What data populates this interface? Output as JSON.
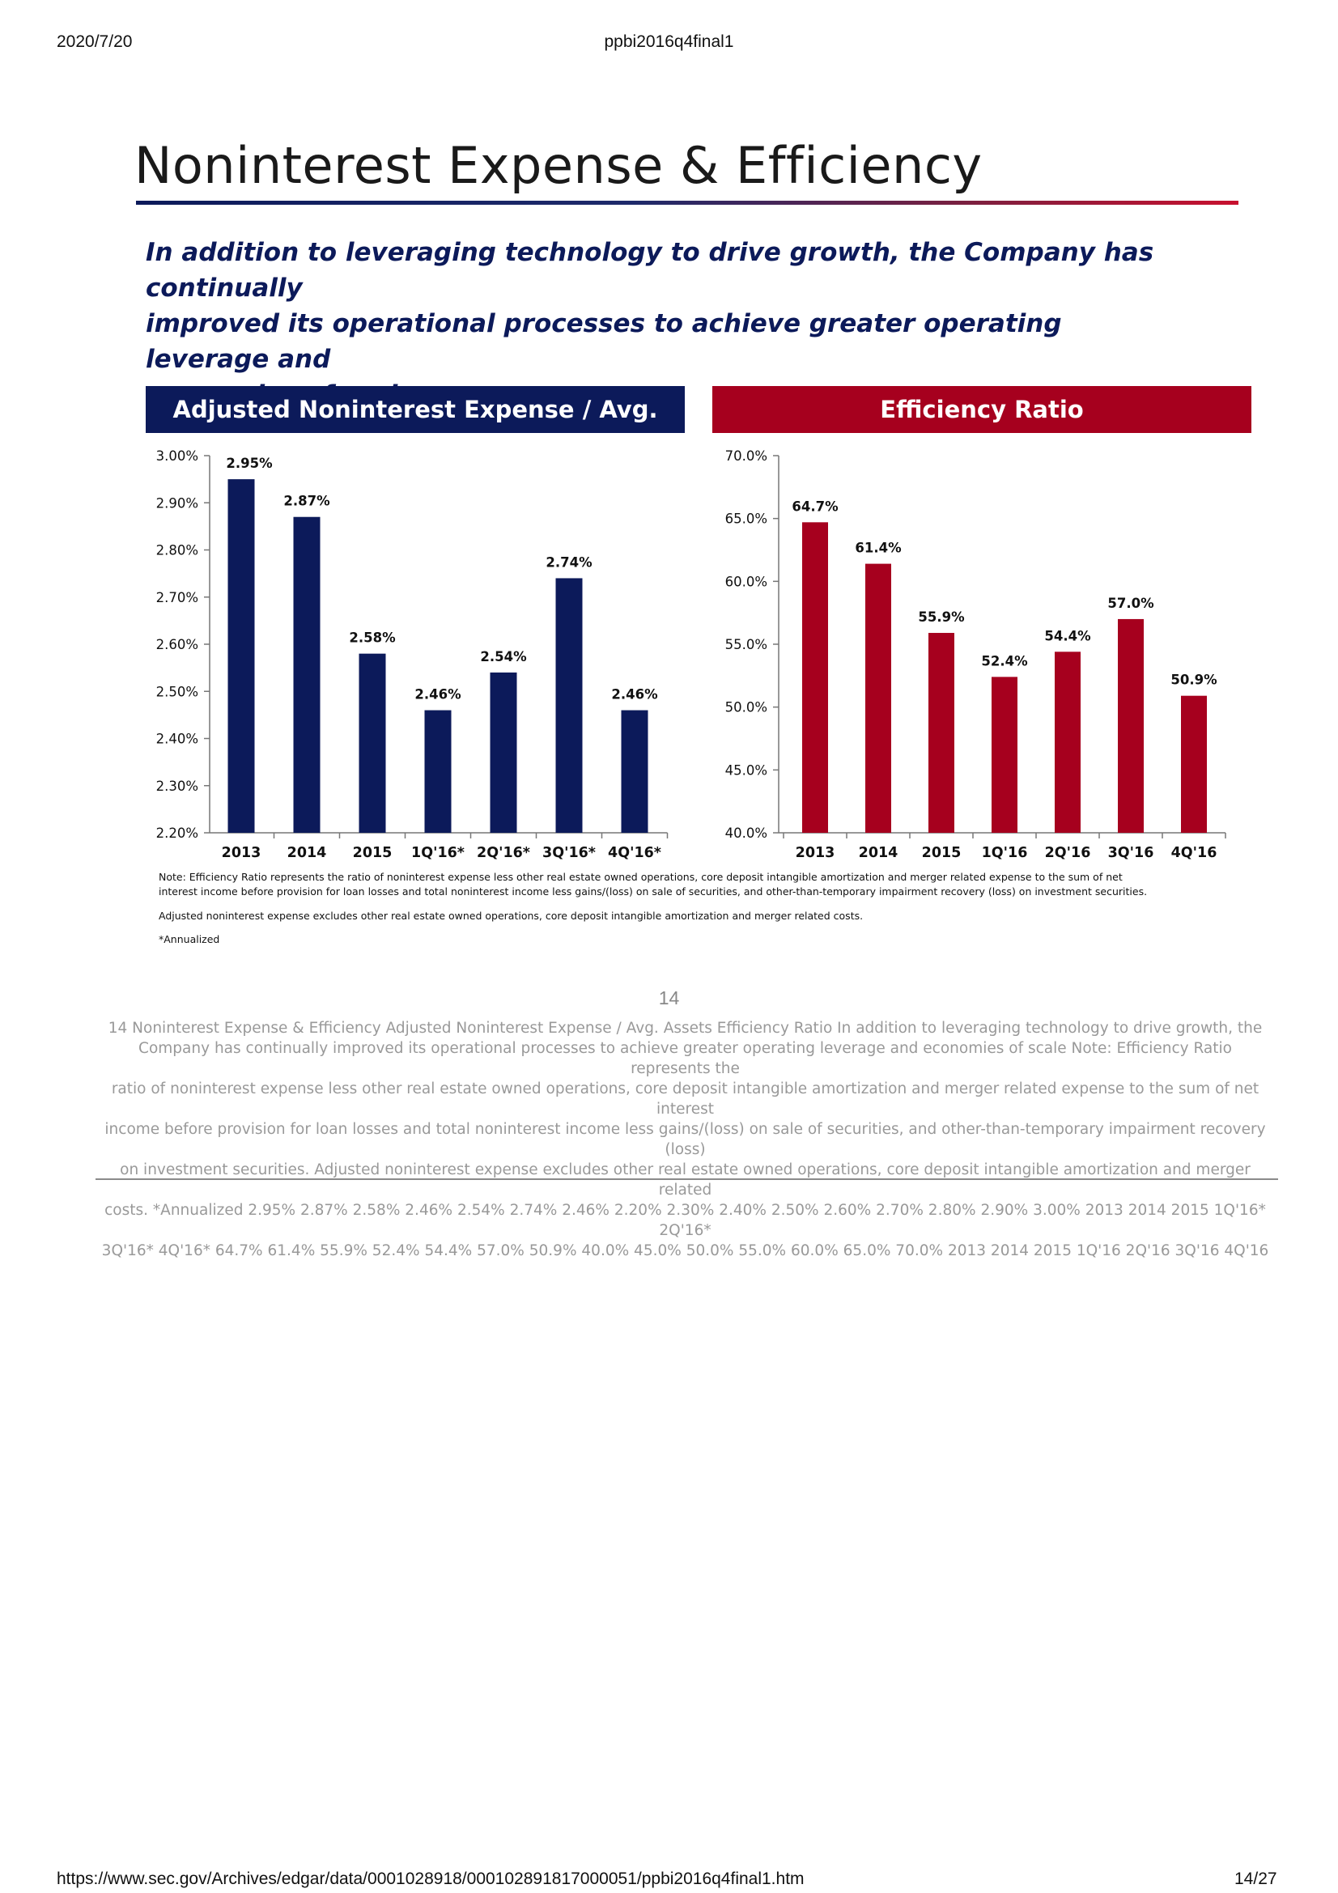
{
  "browser": {
    "date": "2020/7/20",
    "doc_title": "ppbi2016q4final1",
    "url": "https://www.sec.gov/Archives/edgar/data/0001028918/000102891817000051/ppbi2016q4final1.htm",
    "page_counter": "14/27"
  },
  "slide": {
    "title": "Noninterest Expense & Efficiency",
    "intro_lines": [
      "In addition to leveraging technology to drive growth, the Company has continually",
      "improved its operational processes to achieve greater operating leverage and",
      "economies of scale"
    ],
    "note_lines": [
      "Note: Efficiency Ratio represents the ratio of noninterest expense less other real estate owned operations, core deposit intangible amortization and merger related expense to the sum of net",
      "interest income before provision for loan losses and total noninterest income less gains/(loss) on sale of securities, and other-than-temporary impairment recovery (loss) on investment securities.",
      "Adjusted noninterest expense excludes other real estate owned operations, core deposit intangible amortization and merger related costs.",
      "*Annualized"
    ],
    "page_number": "14",
    "colors": {
      "navy": "#0c1a5a",
      "crimson": "#a6001e"
    }
  },
  "alt_text_lines": [
    "14  Noninterest Expense & Efficiency  Adjusted Noninterest Expense / Avg. Assets Efficiency Ratio  In addition to leveraging technology to drive growth, the",
    "Company has continually  improved its operational processes to achieve greater operating leverage and  economies of scale  Note: Efficiency Ratio represents the",
    "ratio of noninterest expense less other real estate owned operations, core deposit intangible amortization and merger related expense to the sum of net  interest",
    "income before provision for loan losses and total noninterest income less gains/(loss) on sale of securities, and other-than-temporary impairment recovery (loss)",
    "on investment securities.   Adjusted noninterest expense excludes other real estate owned operations, core deposit intangible amortization and merger related",
    "costs.   *Annualized  2.95%  2.87%  2.58%  2.46%  2.54%  2.74%  2.46%  2.20% 2.30% 2.40% 2.50% 2.60% 2.70% 2.80% 2.90% 3.00% 2013 2014 2015 1Q'16* 2Q'16*",
    "3Q'16* 4Q'16* 64.7%  61.4%  55.9%  52.4%  54.4%  57.0%  50.9%  40.0% 45.0% 50.0% 55.0% 60.0% 65.0% 70.0% 2013 2014 2015 1Q'16 2Q'16 3Q'16 4Q'16"
  ],
  "chart_data": [
    {
      "type": "bar",
      "title": "Adjusted Noninterest Expense / Avg. Assets",
      "categories": [
        "2013",
        "2014",
        "2015",
        "1Q'16*",
        "2Q'16*",
        "3Q'16*",
        "4Q'16*"
      ],
      "values": [
        2.95,
        2.87,
        2.58,
        2.46,
        2.54,
        2.74,
        2.46
      ],
      "value_labels": [
        "2.95%",
        "2.87%",
        "2.58%",
        "2.46%",
        "2.54%",
        "2.74%",
        "2.46%"
      ],
      "yticks": [
        2.2,
        2.3,
        2.4,
        2.5,
        2.6,
        2.7,
        2.8,
        2.9,
        3.0
      ],
      "ytick_labels": [
        "2.20%",
        "2.30%",
        "2.40%",
        "2.50%",
        "2.60%",
        "2.70%",
        "2.80%",
        "2.90%",
        "3.00%"
      ],
      "ylim": [
        2.2,
        3.0
      ],
      "grid": false,
      "color": "#0c1a5a"
    },
    {
      "type": "bar",
      "title": "Efficiency Ratio",
      "categories": [
        "2013",
        "2014",
        "2015",
        "1Q'16",
        "2Q'16",
        "3Q'16",
        "4Q'16"
      ],
      "values": [
        64.7,
        61.4,
        55.9,
        52.4,
        54.4,
        57.0,
        50.9
      ],
      "value_labels": [
        "64.7%",
        "61.4%",
        "55.9%",
        "52.4%",
        "54.4%",
        "57.0%",
        "50.9%"
      ],
      "yticks": [
        40,
        45,
        50,
        55,
        60,
        65,
        70
      ],
      "ytick_labels": [
        "40.0%",
        "45.0%",
        "50.0%",
        "55.0%",
        "60.0%",
        "65.0%",
        "70.0%"
      ],
      "ylim": [
        40,
        70
      ],
      "grid": false,
      "color": "#a6001e"
    }
  ]
}
